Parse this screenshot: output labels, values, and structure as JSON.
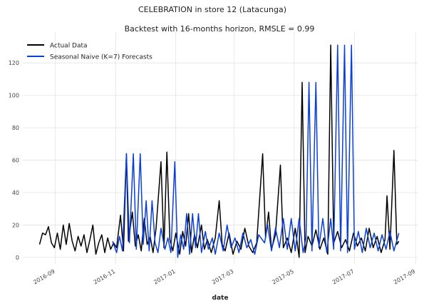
{
  "chart_data": {
    "type": "line",
    "title": "CELEBRATION in store 12 (Latacunga)",
    "subtitle": "Backtest with 16-months horizon, RMSLE = 0.99",
    "x_label": "date",
    "legend": "upper left",
    "grid": true,
    "xlim": [
      "2016-07-30",
      "2017-09-03"
    ],
    "xticks": [
      {
        "value": "2016-09-01",
        "label": "2016-09"
      },
      {
        "value": "2016-11-01",
        "label": "2016-11"
      },
      {
        "value": "2017-01-01",
        "label": "2017-01"
      },
      {
        "value": "2017-03-01",
        "label": "2017-03"
      },
      {
        "value": "2017-05-01",
        "label": "2017-05"
      },
      {
        "value": "2017-07-01",
        "label": "2017-07"
      },
      {
        "value": "2017-09-01",
        "label": "2017-09"
      }
    ],
    "ylim": [
      -4,
      139
    ],
    "yticks": [
      0,
      20,
      40,
      60,
      80,
      100,
      120
    ],
    "series": [
      {
        "name": "Actual Data",
        "color": "#000000",
        "x": [
          "2016-08-16",
          "2016-08-19",
          "2016-08-22",
          "2016-08-25",
          "2016-08-28",
          "2016-08-31",
          "2016-09-03",
          "2016-09-06",
          "2016-09-09",
          "2016-09-12",
          "2016-09-15",
          "2016-09-18",
          "2016-09-21",
          "2016-09-24",
          "2016-09-27",
          "2016-09-30",
          "2016-10-03",
          "2016-10-06",
          "2016-10-09",
          "2016-10-12",
          "2016-10-15",
          "2016-10-18",
          "2016-10-21",
          "2016-10-24",
          "2016-10-27",
          "2016-10-30",
          "2016-11-02",
          "2016-11-06",
          "2016-11-09",
          "2016-11-12",
          "2016-11-14",
          "2016-11-18",
          "2016-11-21",
          "2016-11-24",
          "2016-11-27",
          "2016-11-30",
          "2016-12-03",
          "2016-12-06",
          "2016-12-09",
          "2016-12-12",
          "2016-12-17",
          "2016-12-20",
          "2016-12-23",
          "2016-12-26",
          "2016-12-29",
          "2017-01-01",
          "2017-01-05",
          "2017-01-08",
          "2017-01-11",
          "2017-01-14",
          "2017-01-17",
          "2017-01-20",
          "2017-01-23",
          "2017-01-27",
          "2017-01-30",
          "2017-02-02",
          "2017-02-06",
          "2017-02-10",
          "2017-02-14",
          "2017-02-17",
          "2017-02-20",
          "2017-02-24",
          "2017-02-28",
          "2017-03-04",
          "2017-03-08",
          "2017-03-12",
          "2017-03-16",
          "2017-03-20",
          "2017-03-24",
          "2017-03-30",
          "2017-04-02",
          "2017-04-05",
          "2017-04-08",
          "2017-04-12",
          "2017-04-17",
          "2017-04-20",
          "2017-04-24",
          "2017-04-28",
          "2017-05-02",
          "2017-05-06",
          "2017-05-09",
          "2017-05-12",
          "2017-05-15",
          "2017-05-19",
          "2017-05-23",
          "2017-05-27",
          "2017-05-31",
          "2017-06-04",
          "2017-06-07",
          "2017-06-10",
          "2017-06-14",
          "2017-06-18",
          "2017-06-22",
          "2017-06-26",
          "2017-06-30",
          "2017-07-04",
          "2017-07-08",
          "2017-07-12",
          "2017-07-16",
          "2017-07-20",
          "2017-07-24",
          "2017-07-28",
          "2017-08-01",
          "2017-08-03",
          "2017-08-06",
          "2017-08-10",
          "2017-08-13",
          "2017-08-15"
        ],
        "values": [
          8,
          15,
          14,
          19,
          9,
          6,
          15,
          5,
          20,
          8,
          21,
          10,
          4,
          13,
          7,
          14,
          3,
          11,
          20,
          2,
          9,
          14,
          3,
          12,
          5,
          9,
          6,
          26,
          4,
          64,
          10,
          28,
          7,
          14,
          4,
          24,
          8,
          13,
          3,
          18,
          59,
          6,
          65,
          11,
          4,
          15,
          2,
          16,
          7,
          27,
          3,
          14,
          6,
          20,
          5,
          11,
          3,
          12,
          35,
          8,
          4,
          15,
          2,
          10,
          5,
          18,
          7,
          3,
          9,
          64,
          12,
          28,
          5,
          14,
          57,
          6,
          12,
          3,
          18,
          0,
          108,
          3,
          13,
          7,
          17,
          5,
          12,
          2,
          131,
          9,
          16,
          6,
          11,
          4,
          15,
          7,
          12,
          4,
          18,
          6,
          13,
          3,
          11,
          38,
          5,
          66,
          8,
          10
        ]
      },
      {
        "name": "Seasonal Naive (K=7) Forecasts",
        "color": "#0a3fdb",
        "x": [
          "2016-10-29",
          "2016-11-02",
          "2016-11-05",
          "2016-11-08",
          "2016-11-12",
          "2016-11-15",
          "2016-11-19",
          "2016-11-22",
          "2016-11-26",
          "2016-11-29",
          "2016-12-02",
          "2016-12-05",
          "2016-12-08",
          "2016-12-11",
          "2016-12-14",
          "2016-12-17",
          "2016-12-21",
          "2016-12-24",
          "2016-12-27",
          "2016-12-31",
          "2017-01-03",
          "2017-01-06",
          "2017-01-09",
          "2017-01-12",
          "2017-01-15",
          "2017-01-18",
          "2017-01-21",
          "2017-01-24",
          "2017-01-27",
          "2017-01-31",
          "2017-02-03",
          "2017-02-07",
          "2017-02-10",
          "2017-02-14",
          "2017-02-18",
          "2017-02-22",
          "2017-02-26",
          "2017-03-02",
          "2017-03-06",
          "2017-03-10",
          "2017-03-14",
          "2017-03-18",
          "2017-03-22",
          "2017-03-26",
          "2017-04-01",
          "2017-04-04",
          "2017-04-08",
          "2017-04-12",
          "2017-04-16",
          "2017-04-20",
          "2017-04-24",
          "2017-04-28",
          "2017-05-02",
          "2017-05-06",
          "2017-05-10",
          "2017-05-13",
          "2017-05-16",
          "2017-05-19",
          "2017-05-23",
          "2017-05-26",
          "2017-05-30",
          "2017-06-03",
          "2017-06-07",
          "2017-06-10",
          "2017-06-14",
          "2017-06-17",
          "2017-06-21",
          "2017-06-24",
          "2017-06-28",
          "2017-07-01",
          "2017-07-05",
          "2017-07-09",
          "2017-07-13",
          "2017-07-17",
          "2017-07-21",
          "2017-07-25",
          "2017-07-29",
          "2017-08-02",
          "2017-08-06",
          "2017-08-10",
          "2017-08-15"
        ],
        "values": [
          10,
          3,
          13,
          4,
          64,
          9,
          64,
          5,
          64,
          8,
          35,
          4,
          35,
          9,
          3,
          18,
          5,
          12,
          3,
          59,
          0,
          14,
          5,
          27,
          2,
          27,
          6,
          27,
          3,
          16,
          5,
          12,
          2,
          15,
          4,
          20,
          6,
          12,
          3,
          15,
          6,
          11,
          2,
          14,
          9,
          20,
          4,
          18,
          6,
          24,
          5,
          24,
          4,
          24,
          3,
          12,
          108,
          4,
          108,
          6,
          24,
          3,
          24,
          5,
          131,
          4,
          131,
          3,
          131,
          5,
          16,
          3,
          18,
          6,
          15,
          4,
          14,
          5,
          16,
          4,
          15
        ]
      }
    ]
  }
}
